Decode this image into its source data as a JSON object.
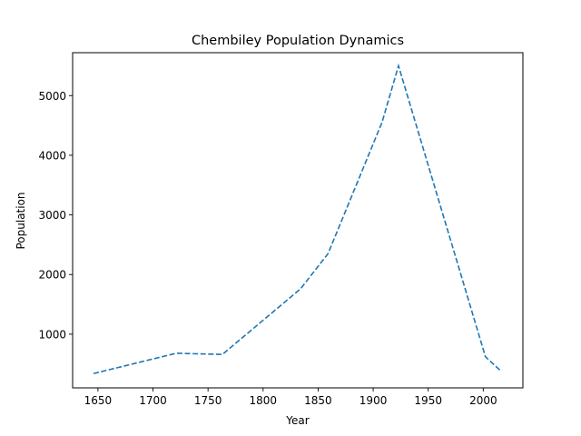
{
  "chart_data": {
    "type": "line",
    "title": "Chembiley Population Dynamics",
    "xlabel": "Year",
    "ylabel": "Population",
    "xlim": [
      1627,
      2036
    ],
    "ylim": [
      100,
      5720
    ],
    "xticks": [
      1650,
      1700,
      1750,
      1800,
      1850,
      1900,
      1950,
      2000
    ],
    "yticks": [
      1000,
      2000,
      3000,
      4000,
      5000
    ],
    "grid": false,
    "series": [
      {
        "line_style": "dashed",
        "color": "#1f77b4",
        "x": [
          1646,
          1721,
          1763,
          1834,
          1859,
          1908,
          1923,
          2002,
          2015
        ],
        "y": [
          340,
          680,
          660,
          1760,
          2350,
          4550,
          5500,
          620,
          400
        ]
      }
    ]
  }
}
